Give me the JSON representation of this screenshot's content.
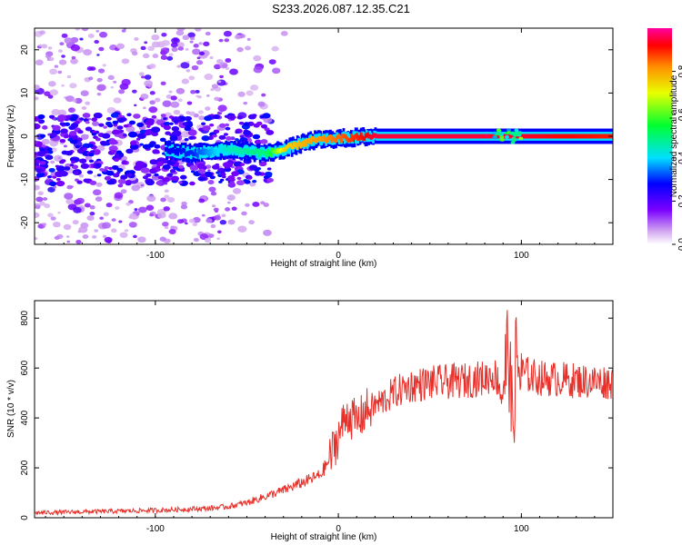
{
  "title": "S233.2026.087.12.35.C21",
  "colors": {
    "snr_line": "#e8302a",
    "axis": "#000000",
    "background": "#ffffff"
  },
  "chart_data": [
    {
      "type": "heatmap",
      "xlabel": "Height of straight line (km)",
      "ylabel": "Frequency (Hz)",
      "xlim": [
        -166,
        150
      ],
      "ylim": [
        -25,
        25
      ],
      "xticks": [
        -100,
        0,
        100
      ],
      "yticks": [
        -20,
        -10,
        0,
        10,
        20
      ],
      "colorbar": {
        "label": "Normalized spectral amplitude",
        "range": [
          0.0,
          1.0
        ],
        "ticks": [
          0.0,
          0.2,
          0.4,
          0.6,
          0.8
        ],
        "colormap": "rainbow (white-purple-blue-cyan-green-yellow-orange-red-magenta)"
      },
      "description_points": [
        {
          "x": -150,
          "y": 0,
          "value": 0.15
        },
        {
          "x": -80,
          "y": -4,
          "value": 0.3
        },
        {
          "x": -60,
          "y": -3,
          "value": 0.45
        },
        {
          "x": -40,
          "y": -4,
          "value": 0.5
        },
        {
          "x": -30,
          "y": -3,
          "value": 0.75
        },
        {
          "x": -15,
          "y": -1,
          "value": 0.8
        },
        {
          "x": 0,
          "y": -0.5,
          "value": 0.85
        },
        {
          "x": 20,
          "y": 0,
          "value": 0.95
        },
        {
          "x": 90,
          "y": 0,
          "value": 0.95
        },
        {
          "x": 150,
          "y": 0,
          "value": 0.9
        }
      ]
    },
    {
      "type": "line",
      "xlabel": "Height of straight line (km)",
      "ylabel": "SNR (10 * v/v)",
      "xlim": [
        -166,
        150
      ],
      "ylim": [
        0,
        870
      ],
      "xticks": [
        -100,
        0,
        100
      ],
      "yticks": [
        0,
        200,
        400,
        600,
        800
      ],
      "series": [
        {
          "x": [
            -166,
            -150,
            -130,
            -110,
            -90,
            -70,
            -60,
            -50,
            -40,
            -30,
            -20,
            -10,
            -5,
            0,
            5,
            10,
            15,
            20,
            25,
            30,
            40,
            50,
            60,
            70,
            80,
            85,
            90,
            93,
            95,
            97,
            100,
            110,
            120,
            130,
            140,
            150
          ],
          "values": [
            20,
            22,
            25,
            28,
            32,
            38,
            45,
            60,
            85,
            110,
            140,
            170,
            230,
            330,
            420,
            380,
            430,
            450,
            470,
            500,
            530,
            540,
            545,
            550,
            560,
            575,
            520,
            700,
            350,
            620,
            580,
            560,
            555,
            550,
            545,
            545
          ]
        }
      ]
    }
  ]
}
